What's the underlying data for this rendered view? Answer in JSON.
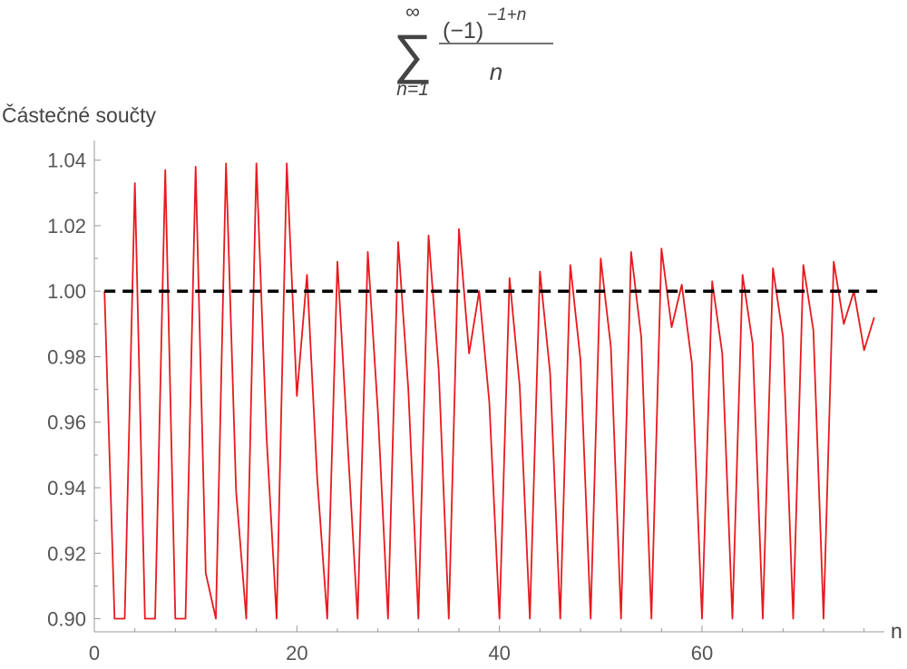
{
  "formula": {
    "sum_symbol": "∑",
    "upper_limit": "∞",
    "lower_limit": "n=1",
    "numerator_base": "(−1)",
    "numerator_exponent": "−1+n",
    "denominator": "n"
  },
  "chart_data": {
    "type": "line",
    "title": "",
    "xlabel": "n",
    "ylabel": "Částečné součty",
    "xlim": [
      0,
      78
    ],
    "ylim": [
      0.896,
      1.046
    ],
    "clip_y": [
      0.9,
      1.046
    ],
    "x_ticks": [
      0,
      20,
      40,
      60
    ],
    "y_ticks": [
      0.9,
      0.92,
      0.94,
      0.96,
      0.98,
      1.0,
      1.02,
      1.04
    ],
    "grid": false,
    "series": [
      {
        "color": "#e8191e",
        "style": "solid",
        "x": [
          1,
          2,
          3,
          4,
          5,
          6,
          7,
          8,
          9,
          10,
          11,
          12,
          13,
          14,
          15,
          16,
          17,
          18,
          19,
          20,
          21,
          22,
          23,
          24,
          25,
          26,
          27,
          28,
          29,
          30,
          31,
          32,
          33,
          34,
          35,
          36,
          37,
          38,
          39,
          40,
          41,
          42,
          43,
          44,
          45,
          46,
          47,
          48,
          49,
          50,
          51,
          52,
          53,
          54,
          55,
          56,
          57,
          58,
          59,
          60,
          61,
          62,
          63,
          64,
          65,
          66,
          67,
          68,
          69,
          70,
          71,
          72,
          73,
          74,
          75,
          76,
          77
        ],
        "y": [
          1.0,
          0.899,
          0.899,
          1.033,
          0.899,
          0.899,
          1.037,
          0.899,
          0.899,
          1.038,
          0.914,
          0.899,
          1.039,
          0.939,
          0.899,
          1.039,
          0.956,
          0.899,
          1.039,
          0.968,
          1.005,
          0.943,
          0.899,
          1.009,
          0.954,
          0.899,
          1.012,
          0.963,
          0.899,
          1.015,
          0.97,
          0.899,
          1.017,
          0.976,
          0.899,
          1.019,
          0.981,
          1.0,
          0.966,
          0.899,
          1.004,
          0.971,
          0.899,
          1.006,
          0.975,
          0.899,
          1.008,
          0.979,
          0.899,
          1.01,
          0.983,
          0.899,
          1.012,
          0.986,
          0.899,
          1.013,
          0.989,
          1.002,
          0.978,
          0.899,
          1.003,
          0.981,
          0.899,
          1.005,
          0.984,
          0.899,
          1.007,
          0.986,
          0.899,
          1.008,
          0.988,
          0.899,
          1.009,
          0.99,
          1.0,
          0.982,
          0.992
        ]
      },
      {
        "color": "#000000",
        "style": "dashed",
        "x": [
          1,
          78
        ],
        "y": [
          1.0,
          1.0
        ]
      }
    ]
  }
}
